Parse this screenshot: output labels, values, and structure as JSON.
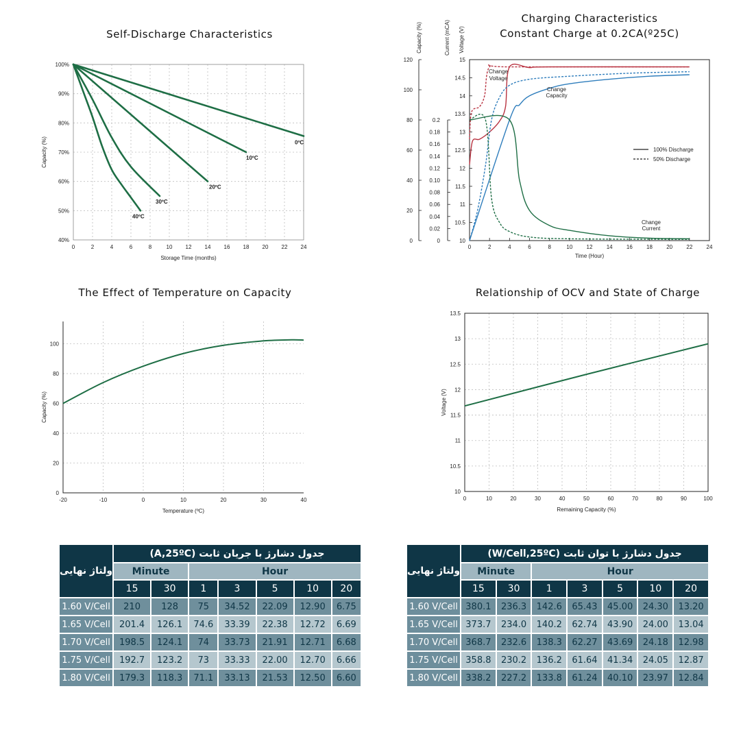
{
  "charts": {
    "self_discharge": {
      "title": "Self-Discharge Characteristics",
      "chart_data": {
        "type": "line",
        "title": "Self-Discharge Characteristics",
        "xlabel": "Storage Time (months)",
        "ylabel": "Capacity (%)",
        "xlim": [
          0,
          24
        ],
        "ylim": [
          40,
          100
        ],
        "x_ticks": [
          "0",
          "2",
          "4",
          "6",
          "8",
          "10",
          "12",
          "14",
          "16",
          "18",
          "20",
          "22",
          "24"
        ],
        "y_ticks": [
          "40%",
          "50%",
          "60%",
          "70%",
          "80%",
          "90%",
          "100%"
        ],
        "grid": true,
        "color": "#1e6e45",
        "series": [
          {
            "name": "0ºC",
            "points": [
              [
                0,
                100
              ],
              [
                24,
                75.5
              ]
            ]
          },
          {
            "name": "10ºC",
            "points": [
              [
                0,
                100
              ],
              [
                18,
                70
              ]
            ]
          },
          {
            "name": "20ºC",
            "points": [
              [
                0,
                100
              ],
              [
                14,
                60
              ]
            ]
          },
          {
            "name": "30ºC",
            "points": [
              [
                0,
                100
              ],
              [
                2,
                88
              ],
              [
                4,
                75
              ],
              [
                6,
                65
              ],
              [
                9,
                55
              ]
            ]
          },
          {
            "name": "40ºC",
            "points": [
              [
                0,
                100
              ],
              [
                1,
                91
              ],
              [
                2,
                82
              ],
              [
                3,
                72
              ],
              [
                4,
                64
              ],
              [
                5,
                59
              ],
              [
                6,
                54.5
              ],
              [
                7,
                50
              ]
            ]
          }
        ]
      }
    },
    "charging": {
      "title_line1": "Charging Characteristics",
      "title_line2": "Constant Charge at 0.2CA(º25C)",
      "chart_data": {
        "type": "line",
        "title": "Charging Characteristics Constant Charge at 0.2CA(º25C)",
        "xlabel": "Time (Hour)",
        "xlim": [
          0,
          24
        ],
        "x_ticks": [
          "0",
          "2",
          "4",
          "6",
          "8",
          "10",
          "12",
          "14",
          "16",
          "18",
          "20",
          "22",
          "24"
        ],
        "axes": [
          {
            "label": "Capacity (%)",
            "range": [
              0,
              120
            ],
            "ticks": [
              "0",
              "20",
              "40",
              "60",
              "80",
              "100",
              "120"
            ]
          },
          {
            "label": "Current (mCA)",
            "range": [
              0,
              0.2
            ],
            "ticks": [
              "0",
              "0.02",
              "0.04",
              "0.06",
              "0.08",
              "0.10",
              "0.12",
              "0.14",
              "0.16",
              "0.18",
              "0.2"
            ]
          },
          {
            "label": "Voltage (V)",
            "range": [
              10,
              15
            ],
            "ticks": [
              "10",
              "10.5",
              "11",
              "11.5",
              "12",
              "12.5",
              "13",
              "13.5",
              "14",
              "14.5",
              "15"
            ]
          }
        ],
        "legend": [
          "100% Discharge",
          "50% Discharge"
        ],
        "legend_position": "right",
        "annotations": [
          {
            "text": "Change Voltage",
            "color": "#b83240"
          },
          {
            "text": "Change Capacity",
            "color": "#2e7dbc"
          },
          {
            "text": "Change Current",
            "color": "#1e6e45"
          }
        ],
        "series": [
          {
            "name": "Change Voltage",
            "style": "100% Discharge",
            "axis": "Voltage (V)",
            "color": "#b83240",
            "points": [
              [
                0,
                12.1
              ],
              [
                0.3,
                12.75
              ],
              [
                1,
                12.8
              ],
              [
                2,
                13.0
              ],
              [
                3,
                13.3
              ],
              [
                3.6,
                13.7
              ],
              [
                4,
                14.8
              ],
              [
                6,
                14.78
              ],
              [
                8,
                14.8
              ],
              [
                22,
                14.8
              ]
            ]
          },
          {
            "name": "Change Voltage",
            "style": "50% Discharge",
            "axis": "Voltage (V)",
            "color": "#b83240",
            "points": [
              [
                0,
                12.8
              ],
              [
                0.2,
                13.55
              ],
              [
                1,
                13.7
              ],
              [
                1.5,
                14.0
              ],
              [
                2,
                14.8
              ],
              [
                4,
                14.8
              ],
              [
                22,
                14.8
              ]
            ]
          },
          {
            "name": "Change Capacity",
            "style": "100% Discharge",
            "axis": "Capacity (%)",
            "color": "#2e7dbc",
            "points": [
              [
                0,
                0
              ],
              [
                4,
                80
              ],
              [
                5,
                90
              ],
              [
                6,
                96
              ],
              [
                8,
                101
              ],
              [
                10,
                104
              ],
              [
                14,
                107
              ],
              [
                18,
                109
              ],
              [
                22,
                110
              ]
            ]
          },
          {
            "name": "Change Capacity",
            "style": "50% Discharge",
            "axis": "Capacity (%)",
            "color": "#2e7dbc",
            "points": [
              [
                0,
                0
              ],
              [
                0.8,
                20
              ],
              [
                1.6,
                50
              ],
              [
                2.2,
                80
              ],
              [
                3,
                95
              ],
              [
                4,
                103
              ],
              [
                6,
                107
              ],
              [
                10,
                109
              ],
              [
                16,
                111
              ],
              [
                22,
                112
              ]
            ]
          },
          {
            "name": "Change Current",
            "style": "100% Discharge",
            "axis": "Current (mCA)",
            "color": "#1e6e45",
            "points": [
              [
                0,
                0.2
              ],
              [
                4,
                0.2
              ],
              [
                5,
                0.1
              ],
              [
                6,
                0.05
              ],
              [
                8,
                0.025
              ],
              [
                10,
                0.017
              ],
              [
                14,
                0.008
              ],
              [
                18,
                0.004
              ],
              [
                22,
                0.003
              ]
            ]
          },
          {
            "name": "Change Current",
            "style": "50% Discharge",
            "axis": "Current (mCA)",
            "color": "#1e6e45",
            "points": [
              [
                0,
                0.2
              ],
              [
                1.6,
                0.2
              ],
              [
                2.2,
                0.07
              ],
              [
                3,
                0.03
              ],
              [
                4,
                0.015
              ],
              [
                6,
                0.006
              ],
              [
                10,
                0.003
              ],
              [
                22,
                0.002
              ]
            ]
          }
        ]
      }
    },
    "temperature": {
      "title": "The Effect of Temperature on Capacity",
      "chart_data": {
        "type": "line",
        "title": "The Effect of Temperature on Capacity",
        "xlabel": "Temperature (ºC)",
        "ylabel": "Capacity (%)",
        "xlim": [
          -20,
          40
        ],
        "ylim": [
          0,
          115
        ],
        "x_ticks": [
          "-20",
          "-10",
          "0",
          "10",
          "20",
          "30",
          "40"
        ],
        "y_ticks": [
          "0",
          "20",
          "40",
          "60",
          "80",
          "100"
        ],
        "grid": true,
        "color": "#1e6e45",
        "series": [
          {
            "name": "",
            "points": [
              [
                -20,
                60
              ],
              [
                -10,
                74
              ],
              [
                0,
                85
              ],
              [
                10,
                93.5
              ],
              [
                20,
                99
              ],
              [
                30,
                102
              ],
              [
                37,
                102.7
              ],
              [
                40,
                102.5
              ]
            ]
          }
        ]
      }
    },
    "ocv": {
      "title": "Relationship of OCV and State of Charge",
      "chart_data": {
        "type": "line",
        "title": "Relationship of OCV and State of Charge",
        "xlabel": "Remaining Capacity (%)",
        "ylabel": "Voltage (V)",
        "xlim": [
          0,
          100
        ],
        "ylim": [
          10,
          13.5
        ],
        "x_ticks": [
          "0",
          "10",
          "20",
          "30",
          "40",
          "50",
          "60",
          "70",
          "80",
          "90",
          "100"
        ],
        "y_ticks": [
          "10",
          "10.5",
          "11",
          "11.5",
          "12",
          "12.5",
          "13",
          "13.5"
        ],
        "grid": true,
        "color": "#1e6e45",
        "series": [
          {
            "name": "",
            "points": [
              [
                0,
                11.68
              ],
              [
                50,
                12.3
              ],
              [
                100,
                12.9
              ]
            ]
          }
        ]
      }
    }
  },
  "tables": {
    "current": {
      "title_ltr": "(A,25ºC)",
      "title_rtl": "جدول دشارژ با جریان ثابت",
      "row_header": "ولتاژ نهایی",
      "group_minute": "Minute",
      "group_hour": "Hour",
      "columns": [
        "15",
        "30",
        "1",
        "3",
        "5",
        "10",
        "20"
      ],
      "rows": [
        {
          "label": "1.60 V/Cell",
          "values": [
            "210",
            "128",
            "75",
            "34.52",
            "22.09",
            "12.90",
            "6.75"
          ]
        },
        {
          "label": "1.65 V/Cell",
          "values": [
            "201.4",
            "126.1",
            "74.6",
            "33.39",
            "22.38",
            "12.72",
            "6.69"
          ]
        },
        {
          "label": "1.70 V/Cell",
          "values": [
            "198.5",
            "124.1",
            "74",
            "33.73",
            "21.91",
            "12.71",
            "6.68"
          ]
        },
        {
          "label": "1.75 V/Cell",
          "values": [
            "192.7",
            "123.2",
            "73",
            "33.33",
            "22.00",
            "12.70",
            "6.66"
          ]
        },
        {
          "label": "1.80 V/Cell",
          "values": [
            "179.3",
            "118.3",
            "71.1",
            "33.13",
            "21.53",
            "12.50",
            "6.60"
          ]
        }
      ]
    },
    "power": {
      "title_ltr": "(W/Cell,25ºC)",
      "title_rtl": "جدول دشارژ با توان ثابت",
      "row_header": "ولتاژ نهایی",
      "group_minute": "Minute",
      "group_hour": "Hour",
      "columns": [
        "15",
        "30",
        "1",
        "3",
        "5",
        "10",
        "20"
      ],
      "rows": [
        {
          "label": "1.60 V/Cell",
          "values": [
            "380.1",
            "236.3",
            "142.6",
            "65.43",
            "45.00",
            "24.30",
            "13.20"
          ]
        },
        {
          "label": "1.65 V/Cell",
          "values": [
            "373.7",
            "234.0",
            "140.2",
            "62.74",
            "43.90",
            "24.00",
            "13.04"
          ]
        },
        {
          "label": "1.70 V/Cell",
          "values": [
            "368.7",
            "232.6",
            "138.3",
            "62.27",
            "43.69",
            "24.18",
            "12.98"
          ]
        },
        {
          "label": "1.75 V/Cell",
          "values": [
            "358.8",
            "230.2",
            "136.2",
            "61.64",
            "41.34",
            "24.05",
            "12.87"
          ]
        },
        {
          "label": "1.80 V/Cell",
          "values": [
            "338.2",
            "227.2",
            "133.8",
            "61.24",
            "40.10",
            "23.97",
            "12.84"
          ]
        }
      ]
    }
  }
}
